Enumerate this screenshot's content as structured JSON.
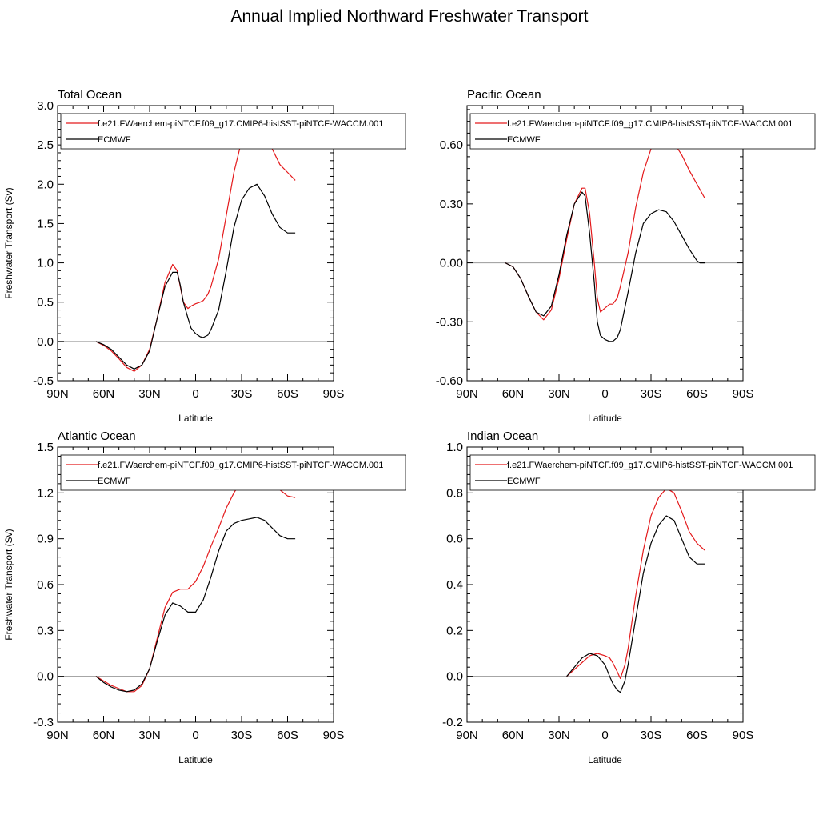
{
  "figure": {
    "title": "Annual Implied Northward Freshwater Transport"
  },
  "colors": {
    "model": "#e41a1c",
    "ecmwf": "#000000",
    "zero_line": "#999999",
    "frame": "#000000"
  },
  "chart_data": [
    {
      "type": "line",
      "title": "Total Ocean",
      "xlabel": "Latitude",
      "ylabel": "Freshwater Transport (Sv)",
      "xlim": [
        90,
        -90
      ],
      "x_ticks": [
        90,
        60,
        30,
        0,
        -30,
        -60,
        -90
      ],
      "x_tick_labels": [
        "90N",
        "60N",
        "30N",
        "0",
        "30S",
        "60S",
        "90S"
      ],
      "ylim": [
        -0.5,
        3.0
      ],
      "y_ticks": [
        -0.5,
        0,
        0.5,
        1.0,
        1.5,
        2.0,
        2.5,
        3.0
      ],
      "y_tick_labels": [
        "-0.5",
        "0.0",
        "0.5",
        "1.0",
        "1.5",
        "2.0",
        "2.5",
        "3.0"
      ],
      "zero_line": true,
      "legend": "top",
      "series": [
        {
          "name": "f.e21.FWaerchem-piNTCF.f09_g17.CMIP6-histSST-piNTCF-WACCM.001",
          "color": "#e41a1c",
          "x": [
            65,
            60,
            55,
            50,
            45,
            40,
            35,
            30,
            25,
            20,
            15,
            12,
            10,
            8,
            5,
            3,
            0,
            -3,
            -5,
            -8,
            -10,
            -15,
            -20,
            -25,
            -30,
            -35,
            -40,
            -45,
            -50,
            -55,
            -60,
            -65
          ],
          "y": [
            0.0,
            -0.05,
            -0.12,
            -0.22,
            -0.33,
            -0.38,
            -0.3,
            -0.1,
            0.3,
            0.75,
            0.98,
            0.9,
            0.7,
            0.5,
            0.42,
            0.45,
            0.48,
            0.5,
            0.52,
            0.6,
            0.7,
            1.05,
            1.6,
            2.15,
            2.55,
            2.8,
            2.85,
            2.7,
            2.45,
            2.25,
            2.15,
            2.05
          ]
        },
        {
          "name": "ECMWF",
          "color": "#000000",
          "x": [
            65,
            60,
            55,
            50,
            45,
            40,
            35,
            30,
            25,
            20,
            15,
            12,
            10,
            8,
            5,
            3,
            0,
            -3,
            -5,
            -8,
            -10,
            -15,
            -20,
            -25,
            -30,
            -35,
            -40,
            -45,
            -50,
            -55,
            -60,
            -65
          ],
          "y": [
            0.0,
            -0.04,
            -0.1,
            -0.2,
            -0.3,
            -0.35,
            -0.3,
            -0.12,
            0.3,
            0.7,
            0.88,
            0.88,
            0.72,
            0.5,
            0.3,
            0.17,
            0.1,
            0.06,
            0.05,
            0.08,
            0.15,
            0.4,
            0.9,
            1.45,
            1.8,
            1.95,
            2.0,
            1.85,
            1.62,
            1.45,
            1.38,
            1.38
          ]
        }
      ]
    },
    {
      "type": "line",
      "title": "Pacific Ocean",
      "xlabel": "Latitude",
      "ylabel": "",
      "xlim": [
        90,
        -90
      ],
      "x_ticks": [
        90,
        60,
        30,
        0,
        -30,
        -60,
        -90
      ],
      "x_tick_labels": [
        "90N",
        "60N",
        "30N",
        "0",
        "30S",
        "60S",
        "90S"
      ],
      "ylim": [
        -0.6,
        0.8
      ],
      "y_ticks": [
        -0.6,
        -0.3,
        0,
        0.3,
        0.6
      ],
      "y_tick_labels": [
        "-0.60",
        "-0.30",
        "0.00",
        "0.30",
        "0.60"
      ],
      "zero_line": true,
      "legend": "top",
      "series": [
        {
          "name": "f.e21.FWaerchem-piNTCF.f09_g17.CMIP6-histSST-piNTCF-WACCM.001",
          "color": "#e41a1c",
          "x": [
            65,
            60,
            55,
            50,
            45,
            40,
            35,
            30,
            25,
            20,
            15,
            13,
            10,
            7,
            5,
            3,
            0,
            -3,
            -5,
            -8,
            -10,
            -15,
            -20,
            -25,
            -30,
            -35,
            -40,
            -45,
            -50,
            -55,
            -60,
            -65
          ],
          "y": [
            0.0,
            -0.02,
            -0.08,
            -0.17,
            -0.25,
            -0.29,
            -0.24,
            -0.08,
            0.12,
            0.3,
            0.38,
            0.38,
            0.25,
            0.0,
            -0.18,
            -0.25,
            -0.23,
            -0.21,
            -0.21,
            -0.18,
            -0.12,
            0.05,
            0.28,
            0.46,
            0.58,
            0.63,
            0.64,
            0.61,
            0.55,
            0.47,
            0.4,
            0.33
          ]
        },
        {
          "name": "ECMWF",
          "color": "#000000",
          "x": [
            65,
            60,
            55,
            50,
            45,
            40,
            35,
            30,
            25,
            20,
            15,
            13,
            10,
            7,
            5,
            3,
            0,
            -3,
            -5,
            -8,
            -10,
            -15,
            -20,
            -25,
            -30,
            -35,
            -40,
            -45,
            -50,
            -55,
            -60,
            -62,
            -65
          ],
          "y": [
            0.0,
            -0.02,
            -0.08,
            -0.17,
            -0.25,
            -0.27,
            -0.22,
            -0.06,
            0.14,
            0.3,
            0.36,
            0.34,
            0.15,
            -0.1,
            -0.3,
            -0.37,
            -0.39,
            -0.4,
            -0.4,
            -0.38,
            -0.34,
            -0.15,
            0.05,
            0.2,
            0.25,
            0.27,
            0.26,
            0.21,
            0.14,
            0.07,
            0.01,
            0.0,
            0.0
          ]
        }
      ]
    },
    {
      "type": "line",
      "title": "Atlantic Ocean",
      "xlabel": "Latitude",
      "ylabel": "Freshwater Transport (Sv)",
      "xlim": [
        90,
        -90
      ],
      "x_ticks": [
        90,
        60,
        30,
        0,
        -30,
        -60,
        -90
      ],
      "x_tick_labels": [
        "90N",
        "60N",
        "30N",
        "0",
        "30S",
        "60S",
        "90S"
      ],
      "ylim": [
        -0.3,
        1.5
      ],
      "y_ticks": [
        -0.3,
        0,
        0.3,
        0.6,
        0.9,
        1.2,
        1.5
      ],
      "y_tick_labels": [
        "-0.3",
        "0.0",
        "0.3",
        "0.6",
        "0.9",
        "1.2",
        "1.5"
      ],
      "zero_line": true,
      "legend": "top",
      "series": [
        {
          "name": "f.e21.FWaerchem-piNTCF.f09_g17.CMIP6-histSST-piNTCF-WACCM.001",
          "color": "#e41a1c",
          "x": [
            65,
            60,
            55,
            50,
            45,
            40,
            35,
            30,
            25,
            20,
            15,
            10,
            5,
            0,
            -5,
            -10,
            -15,
            -20,
            -25,
            -30,
            -35,
            -40,
            -45,
            -50,
            -55,
            -60,
            -65
          ],
          "y": [
            0.0,
            -0.03,
            -0.06,
            -0.08,
            -0.1,
            -0.1,
            -0.06,
            0.05,
            0.25,
            0.45,
            0.55,
            0.57,
            0.57,
            0.62,
            0.72,
            0.85,
            0.97,
            1.1,
            1.2,
            1.28,
            1.34,
            1.37,
            1.33,
            1.26,
            1.22,
            1.18,
            1.17
          ]
        },
        {
          "name": "ECMWF",
          "color": "#000000",
          "x": [
            65,
            60,
            55,
            50,
            45,
            40,
            35,
            30,
            25,
            20,
            15,
            10,
            5,
            0,
            -5,
            -10,
            -15,
            -20,
            -25,
            -30,
            -35,
            -40,
            -45,
            -50,
            -55,
            -60,
            -65
          ],
          "y": [
            0.0,
            -0.04,
            -0.07,
            -0.09,
            -0.1,
            -0.09,
            -0.05,
            0.05,
            0.23,
            0.4,
            0.48,
            0.46,
            0.42,
            0.42,
            0.5,
            0.65,
            0.82,
            0.95,
            1.0,
            1.02,
            1.03,
            1.04,
            1.02,
            0.97,
            0.92,
            0.9,
            0.9
          ]
        }
      ]
    },
    {
      "type": "line",
      "title": "Indian Ocean",
      "xlabel": "Latitude",
      "ylabel": "",
      "xlim": [
        90,
        -90
      ],
      "x_ticks": [
        90,
        60,
        30,
        0,
        -30,
        -60,
        -90
      ],
      "x_tick_labels": [
        "90N",
        "60N",
        "30N",
        "0",
        "30S",
        "60S",
        "90S"
      ],
      "ylim": [
        -0.2,
        1.0
      ],
      "y_ticks": [
        -0.2,
        0,
        0.2,
        0.4,
        0.6,
        0.8,
        1.0
      ],
      "y_tick_labels": [
        "-0.2",
        "0.0",
        "0.2",
        "0.4",
        "0.6",
        "0.8",
        "1.0"
      ],
      "zero_line": true,
      "legend": "top",
      "series": [
        {
          "name": "f.e21.FWaerchem-piNTCF.f09_g17.CMIP6-histSST-piNTCF-WACCM.001",
          "color": "#e41a1c",
          "x": [
            25,
            20,
            15,
            10,
            5,
            0,
            -3,
            -5,
            -8,
            -10,
            -13,
            -15,
            -20,
            -25,
            -30,
            -35,
            -40,
            -45,
            -50,
            -55,
            -60,
            -65
          ],
          "y": [
            0.0,
            0.03,
            0.06,
            0.09,
            0.1,
            0.09,
            0.08,
            0.06,
            0.02,
            -0.01,
            0.05,
            0.12,
            0.35,
            0.55,
            0.7,
            0.78,
            0.82,
            0.8,
            0.72,
            0.63,
            0.58,
            0.55
          ]
        },
        {
          "name": "ECMWF",
          "color": "#000000",
          "x": [
            25,
            20,
            15,
            10,
            5,
            0,
            -3,
            -5,
            -8,
            -10,
            -13,
            -15,
            -20,
            -25,
            -30,
            -35,
            -40,
            -45,
            -50,
            -55,
            -60,
            -65
          ],
          "y": [
            0.0,
            0.04,
            0.08,
            0.1,
            0.09,
            0.05,
            0.0,
            -0.03,
            -0.06,
            -0.07,
            -0.02,
            0.05,
            0.25,
            0.45,
            0.58,
            0.66,
            0.7,
            0.68,
            0.6,
            0.52,
            0.49,
            0.49
          ]
        }
      ]
    }
  ]
}
